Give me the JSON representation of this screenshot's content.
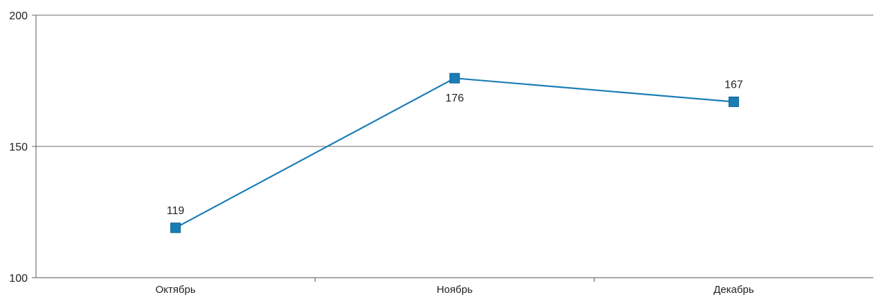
{
  "chart_data": {
    "type": "line",
    "title": "",
    "xlabel": "",
    "ylabel": "",
    "categories": [
      "Октябрь",
      "Ноябрь",
      "Декабрь"
    ],
    "series": [
      {
        "values": [
          119,
          176,
          167
        ],
        "color": "#1a7db6",
        "marker": "square"
      }
    ],
    "ylim": [
      100,
      200
    ],
    "yticks": [
      100,
      150,
      200
    ],
    "grid": true,
    "data_labels": [
      "119",
      "176",
      "167"
    ],
    "data_label_positions": [
      "above",
      "below",
      "above"
    ]
  }
}
